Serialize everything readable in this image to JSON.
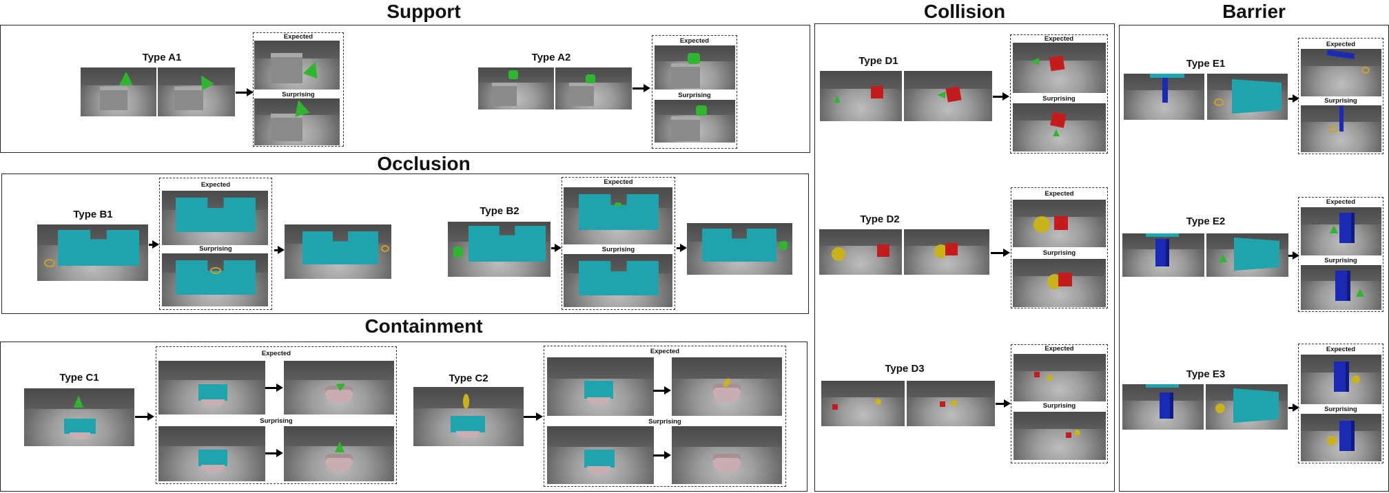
{
  "sections": {
    "support": "Support",
    "occlusion": "Occlusion",
    "containment": "Containment",
    "collision": "Collision",
    "barrier": "Barrier"
  },
  "labels": {
    "expected": "Expected",
    "surprising": "Surprising"
  },
  "types": {
    "a1": "Type A1",
    "a2": "Type A2",
    "b1": "Type B1",
    "b2": "Type B2",
    "c1": "Type C1",
    "c2": "Type C2",
    "d1": "Type D1",
    "d2": "Type D2",
    "d3": "Type D3",
    "e1": "Type E1",
    "e2": "Type E2",
    "e3": "Type E3"
  },
  "colors": {
    "cone_green": "#2fb52f",
    "box_gray": "#8c8c8c",
    "wall_teal": "#1fa3ad",
    "cube_red": "#c41c1c",
    "ball_yellow": "#c9b31c",
    "block_blue": "#1b2ab5",
    "bowl_pink": "#c8aeb0"
  }
}
